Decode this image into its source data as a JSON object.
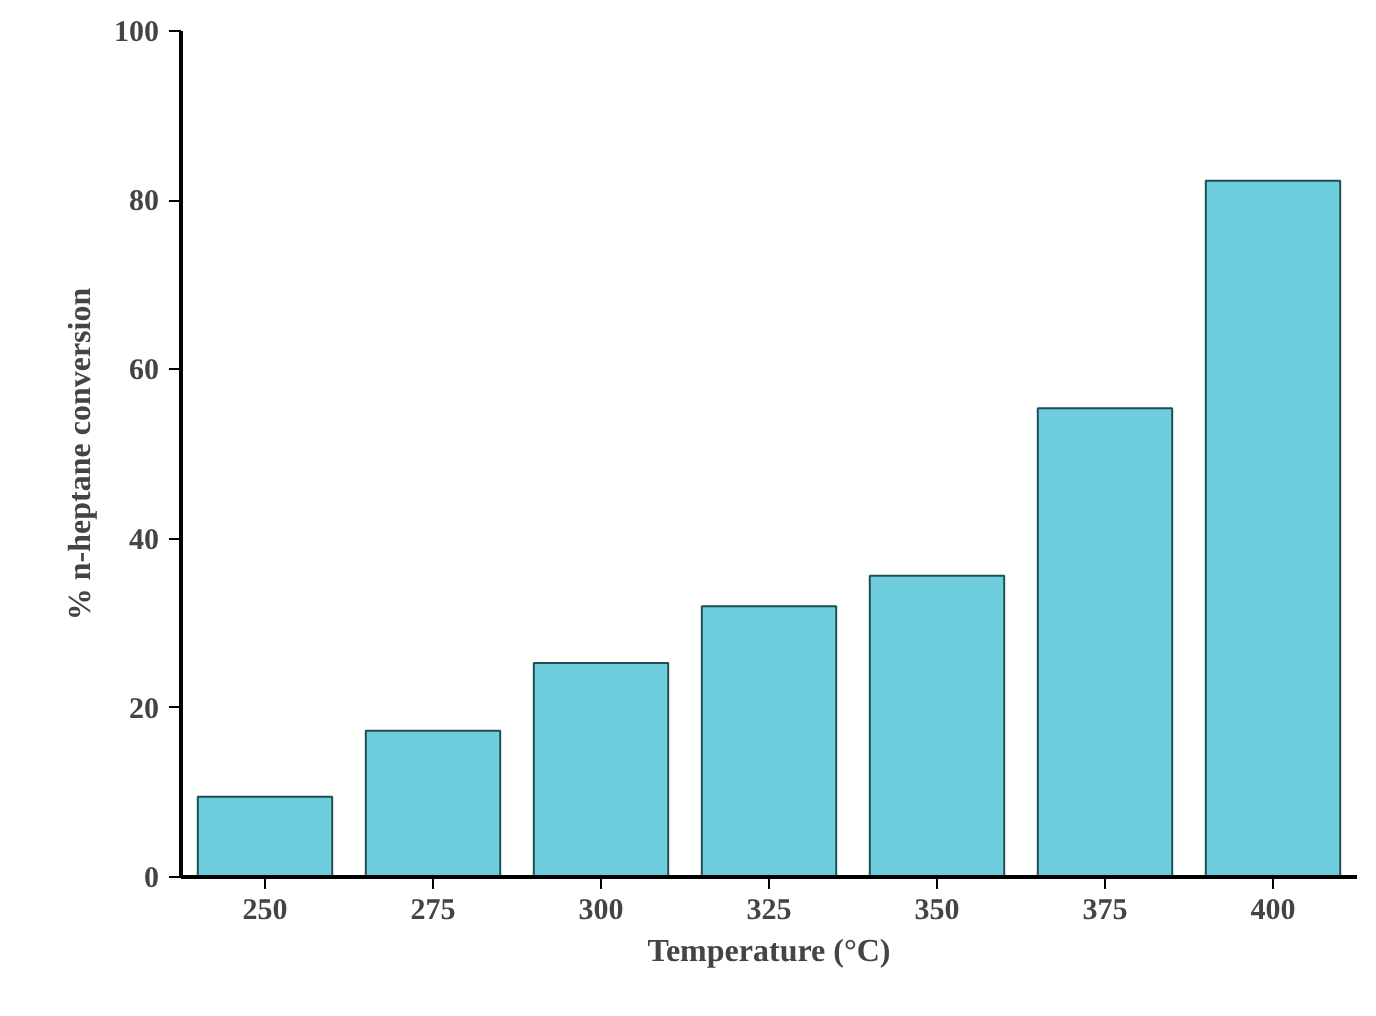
{
  "chart_data": {
    "type": "bar",
    "xlabel": "Temperature (°C)",
    "ylabel": "% n-heptane conversion",
    "categories": [
      "250",
      "275",
      "300",
      "325",
      "350",
      "375",
      "400"
    ],
    "values": [
      9.5,
      17.3,
      25.3,
      32.0,
      35.6,
      55.4,
      82.3
    ],
    "color": "#6ecddd",
    "ylim": [
      0,
      100
    ],
    "yticks": [
      0,
      20,
      40,
      60,
      80,
      100
    ],
    "grid": false
  }
}
